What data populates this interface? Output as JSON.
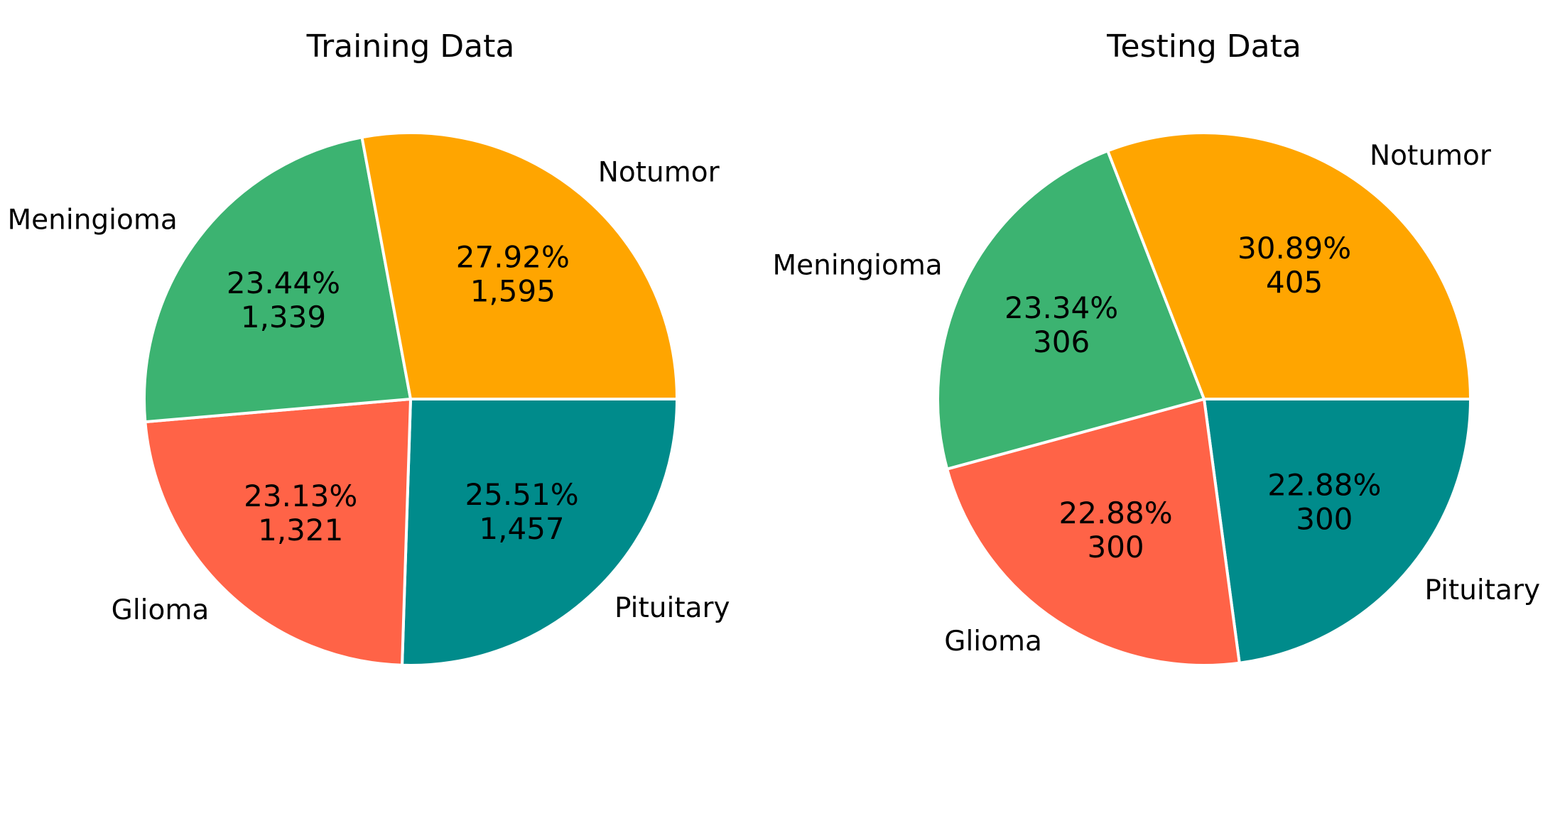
{
  "chart_data": [
    {
      "type": "pie",
      "title": "Training Data",
      "categories": [
        "Pituitary",
        "Glioma",
        "Meningioma",
        "Notumor"
      ],
      "values": [
        1457,
        1321,
        1339,
        1595
      ],
      "value_labels": [
        "1,457",
        "1,321",
        "1,339",
        "1,595"
      ],
      "percent_labels": [
        "25.51%",
        "23.13%",
        "23.44%",
        "27.92%"
      ],
      "colors": [
        "#008b8b",
        "#ff6347",
        "#3cb371",
        "#ffa500"
      ],
      "start_angle_deg": 0,
      "direction": "clockwise",
      "legend": "none"
    },
    {
      "type": "pie",
      "title": "Testing Data",
      "categories": [
        "Pituitary",
        "Glioma",
        "Meningioma",
        "Notumor"
      ],
      "values": [
        300,
        300,
        306,
        405
      ],
      "value_labels": [
        "300",
        "300",
        "306",
        "405"
      ],
      "percent_labels": [
        "22.88%",
        "22.88%",
        "23.34%",
        "30.89%"
      ],
      "colors": [
        "#008b8b",
        "#ff6347",
        "#3cb371",
        "#ffa500"
      ],
      "start_angle_deg": 0,
      "direction": "clockwise",
      "legend": "none"
    }
  ]
}
